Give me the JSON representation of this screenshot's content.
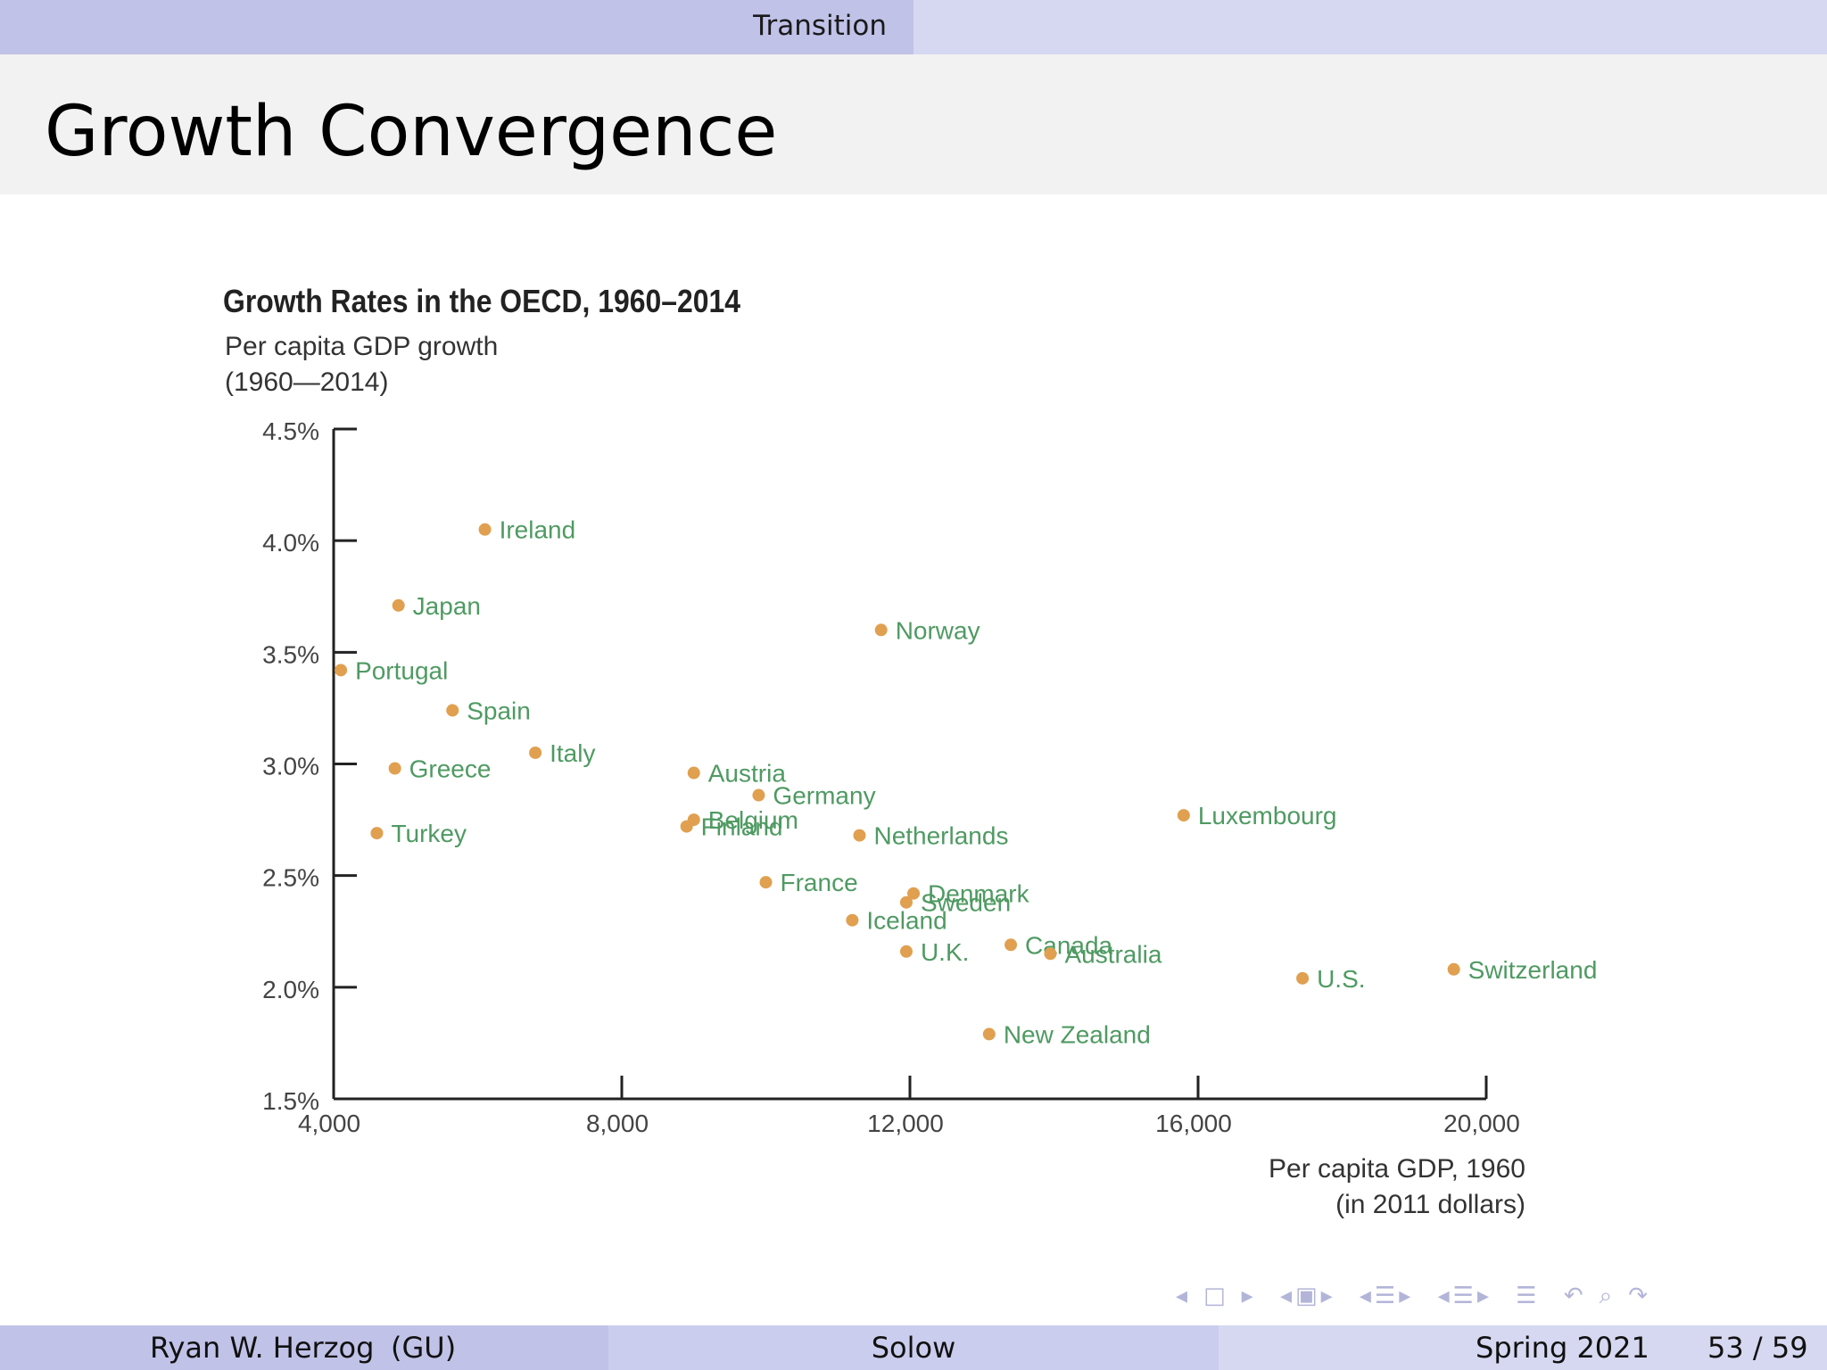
{
  "header": {
    "section": "Transition"
  },
  "frame": {
    "title": "Growth Convergence"
  },
  "chart_data": {
    "type": "scatter",
    "title": "Growth Rates in the OECD, 1960–2014",
    "ylabel_lines": [
      "Per capita GDP growth",
      "(1960—2014)"
    ],
    "xlabel_lines": [
      "Per capita GDP, 1960",
      "(in 2011 dollars)"
    ],
    "xlim": [
      4000,
      20000
    ],
    "ylim": [
      1.5,
      4.5
    ],
    "x_ticks": [
      4000,
      8000,
      12000,
      16000,
      20000
    ],
    "x_tick_labels": [
      "4,000",
      "8,000",
      "12,000",
      "16,000",
      "20,000"
    ],
    "y_ticks": [
      1.5,
      2.0,
      2.5,
      3.0,
      3.5,
      4.0,
      4.5
    ],
    "y_tick_labels": [
      "1.5%",
      "2.0%",
      "2.5%",
      "3.0%",
      "3.5%",
      "4.0%",
      "4.5%"
    ],
    "grid": false,
    "legend": "none",
    "point_color": "#e0a050",
    "label_color": "#4f9a62",
    "points": [
      {
        "label": "Ireland",
        "x": 6100,
        "y": 4.05
      },
      {
        "label": "Japan",
        "x": 4900,
        "y": 3.71
      },
      {
        "label": "Portugal",
        "x": 4100,
        "y": 3.42
      },
      {
        "label": "Spain",
        "x": 5650,
        "y": 3.24
      },
      {
        "label": "Italy",
        "x": 6800,
        "y": 3.05
      },
      {
        "label": "Greece",
        "x": 4850,
        "y": 2.98
      },
      {
        "label": "Turkey",
        "x": 4600,
        "y": 2.69
      },
      {
        "label": "Norway",
        "x": 11600,
        "y": 3.6
      },
      {
        "label": "Austria",
        "x": 9000,
        "y": 2.96
      },
      {
        "label": "Germany",
        "x": 9900,
        "y": 2.86
      },
      {
        "label": "Belgium",
        "x": 9000,
        "y": 2.75
      },
      {
        "label": "Finland",
        "x": 8900,
        "y": 2.72
      },
      {
        "label": "Netherlands",
        "x": 11300,
        "y": 2.68
      },
      {
        "label": "Luxembourg",
        "x": 15800,
        "y": 2.77
      },
      {
        "label": "France",
        "x": 10000,
        "y": 2.47
      },
      {
        "label": "Denmark",
        "x": 12050,
        "y": 2.42
      },
      {
        "label": "Sweden",
        "x": 11950,
        "y": 2.38
      },
      {
        "label": "Iceland",
        "x": 11200,
        "y": 2.3
      },
      {
        "label": "U.K.",
        "x": 11950,
        "y": 2.16
      },
      {
        "label": "Canada",
        "x": 13400,
        "y": 2.19
      },
      {
        "label": "Australia",
        "x": 13950,
        "y": 2.15
      },
      {
        "label": "U.S.",
        "x": 17450,
        "y": 2.04
      },
      {
        "label": "Switzerland",
        "x": 19550,
        "y": 2.08
      },
      {
        "label": "New Zealand",
        "x": 13100,
        "y": 1.79
      }
    ]
  },
  "footer": {
    "author": "Ryan W. Herzog",
    "institution": "(GU)",
    "short_title": "Solow",
    "date": "Spring 2021",
    "page": "53 / 59"
  },
  "nav_icons": [
    "arrow-left-icon",
    "frame-icon",
    "arrow-right-icon",
    "subsection-icon",
    "section-icon",
    "align-icon",
    "back-icon",
    "search-icon",
    "forward-icon"
  ]
}
